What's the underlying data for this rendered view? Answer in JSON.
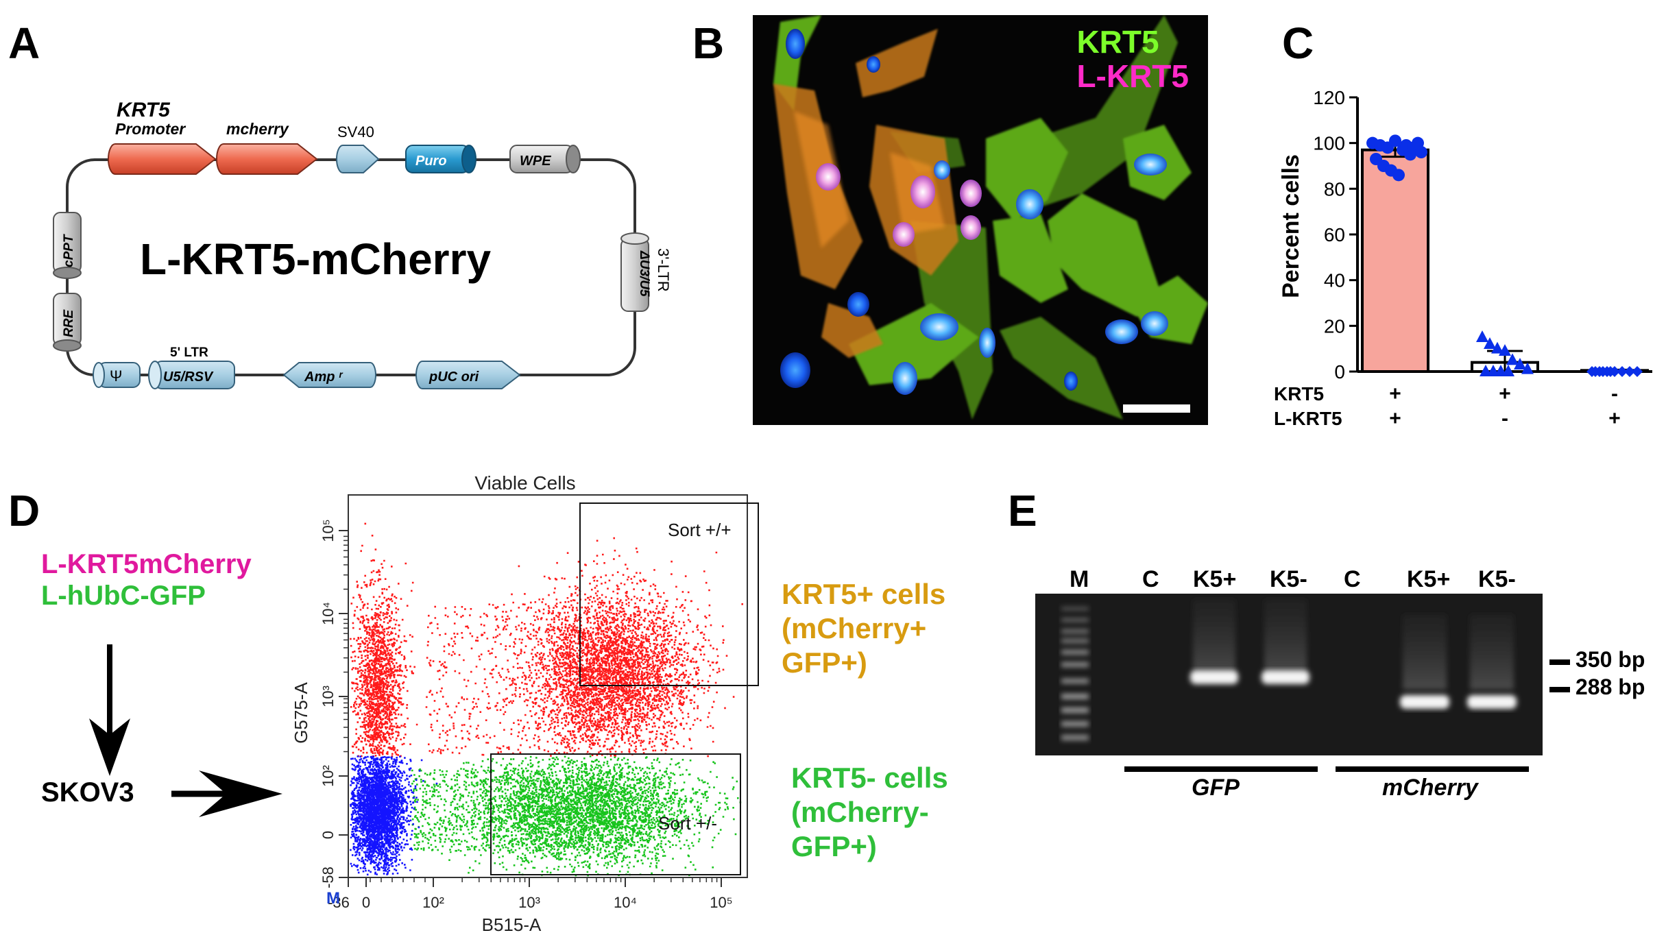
{
  "panels": {
    "a": "A",
    "b": "B",
    "c": "C",
    "d": "D",
    "e": "E"
  },
  "colors": {
    "magenta": "#e0199e",
    "green": "#2fbf3a",
    "bright_green": "#7cff2a",
    "orange": "#d89b10",
    "salmon": "#f7a59c",
    "blue_dot": "#0a2fe8",
    "flow_red": "#ff1a1a",
    "flow_green": "#17c41c",
    "flow_blue": "#1414ff"
  },
  "panel_a": {
    "title": "L-KRT5-mCherry",
    "gene_italic": "KRT5",
    "promoter": "Promoter",
    "mcherry": "mcherry",
    "sv40": "SV40",
    "puro": "Puro",
    "wpe": "WPE",
    "cppt": "cPPT",
    "rre": "RRE",
    "ltr3": "3'-LTR",
    "du3u5": "ΔU3/U5",
    "psi": "Ψ",
    "ltr5": "5' LTR",
    "u5rsv": "U5/RSV",
    "amp": "Amp ʳ",
    "puc": "pUC ori"
  },
  "panel_b": {
    "label_krt5": "KRT5",
    "label_lkrt5": "L-KRT5"
  },
  "chart_data": {
    "type": "bar",
    "ylabel": "Percent cells",
    "ylim": [
      0,
      120
    ],
    "yticks": [
      "0",
      "20",
      "40",
      "60",
      "80",
      "100",
      "120"
    ],
    "row_labels": [
      "KRT5",
      "L-KRT5"
    ],
    "categories": [
      {
        "krt5": "+",
        "lkrt5": "+"
      },
      {
        "krt5": "+",
        "lkrt5": "-"
      },
      {
        "krt5": "-",
        "lkrt5": "+"
      }
    ],
    "values": [
      97,
      4,
      0.5
    ],
    "errors": [
      3,
      5,
      0.3
    ],
    "points": [
      [
        100,
        99,
        98,
        101,
        97,
        95,
        100,
        93,
        90,
        88,
        86,
        99,
        98,
        96
      ],
      [
        15,
        12,
        10,
        9,
        5,
        3,
        1,
        0,
        0,
        0,
        0
      ],
      [
        0,
        0,
        0,
        0,
        0,
        0,
        0,
        0,
        0,
        0
      ]
    ]
  },
  "panel_d": {
    "construct1": "L-KRT5mCherry",
    "construct2": "L-hUbC-GFP",
    "cell_line": "SKOV3",
    "plot_title": "Viable Cells",
    "y_axis": "G575-A",
    "x_axis": "B515-A",
    "gate1": "Sort +/+",
    "gate2": "Sort +/-",
    "y_ticks": [
      "10⁵",
      "10⁴",
      "10³",
      "10²",
      "0",
      "-58"
    ],
    "x_ticks": [
      "-36",
      "0",
      "10²",
      "10³",
      "10⁴",
      "10⁵"
    ],
    "corner_m": "M",
    "pos_label": [
      "KRT5+ cells",
      "(mCherry+",
      "GFP+)"
    ],
    "neg_label": [
      "KRT5- cells",
      "(mCherry-",
      "GFP+)"
    ]
  },
  "panel_e": {
    "lanes": [
      "M",
      "C",
      "K5+",
      "K5-",
      "C",
      "K5+",
      "K5-"
    ],
    "size1": "350 bp",
    "size2": "288 bp",
    "group1": "GFP",
    "group2": "mCherry"
  }
}
